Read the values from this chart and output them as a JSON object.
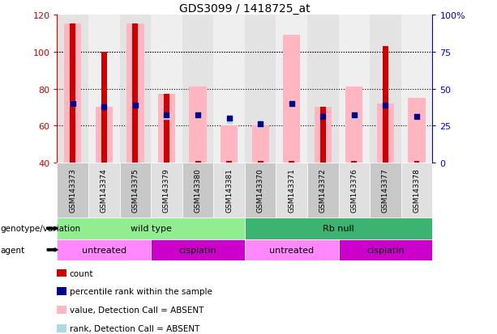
{
  "title": "GDS3099 / 1418725_at",
  "samples": [
    "GSM143373",
    "GSM143374",
    "GSM143375",
    "GSM143379",
    "GSM143380",
    "GSM143381",
    "GSM143370",
    "GSM143371",
    "GSM143372",
    "GSM143376",
    "GSM143377",
    "GSM143378"
  ],
  "ylim_left": [
    40,
    120
  ],
  "yticks_left": [
    40,
    60,
    80,
    100,
    120
  ],
  "ytick_labels_right": [
    "0",
    "25",
    "50",
    "75",
    "100%"
  ],
  "pink_bar_tops": [
    115,
    70,
    115,
    77,
    81,
    60,
    60,
    109,
    70,
    81,
    72,
    75
  ],
  "red_bar_tops": [
    115,
    100,
    115,
    77,
    41,
    41,
    41,
    41,
    70,
    41,
    103,
    41
  ],
  "blue_dot_y": [
    72,
    70,
    71,
    66,
    66,
    64,
    61,
    72,
    65,
    66,
    71,
    65
  ],
  "light_blue_dot_y": [
    72,
    null,
    null,
    65,
    66,
    63,
    60,
    null,
    null,
    65,
    null,
    null
  ],
  "genotype_groups": [
    {
      "label": "wild type",
      "start": 0,
      "end": 6,
      "color": "#90EE90"
    },
    {
      "label": "Rb null",
      "start": 6,
      "end": 12,
      "color": "#3CB371"
    }
  ],
  "agent_groups": [
    {
      "label": "untreated",
      "start": 0,
      "end": 3,
      "color": "#FF88FF"
    },
    {
      "label": "cisplatin",
      "start": 3,
      "end": 6,
      "color": "#CC00CC"
    },
    {
      "label": "untreated",
      "start": 6,
      "end": 9,
      "color": "#FF88FF"
    },
    {
      "label": "cisplatin",
      "start": 9,
      "end": 12,
      "color": "#CC00CC"
    }
  ],
  "colors": {
    "red_bar": "#CC0000",
    "pink_bar": "#FFB6C1",
    "blue_dot": "#00008B",
    "light_blue_dot": "#ADD8E6",
    "left_tick_color": "#CC0000",
    "right_tick_color": "#0000CC",
    "col_bg_odd": "#C8C8C8",
    "col_bg_even": "#E0E0E0"
  },
  "legend_items": [
    {
      "color": "#CC0000",
      "label": "count"
    },
    {
      "color": "#00008B",
      "label": "percentile rank within the sample"
    },
    {
      "color": "#FFB6C1",
      "label": "value, Detection Call = ABSENT"
    },
    {
      "color": "#ADD8E6",
      "label": "rank, Detection Call = ABSENT"
    }
  ]
}
